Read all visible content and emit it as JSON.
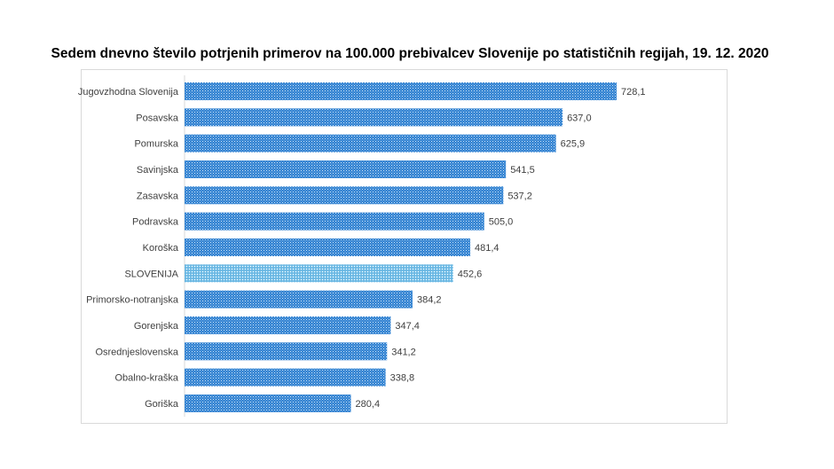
{
  "chart_data": {
    "type": "bar",
    "orientation": "horizontal",
    "title": "Sedem dnevno število potrjenih primerov na 100.000 prebivalcev Slovenije po statističnih regijah, 19. 12. 2020",
    "categories": [
      "Jugovzhodna Slovenija",
      "Posavska",
      "Pomurska",
      "Savinjska",
      "Zasavska",
      "Podravska",
      "Koroška",
      "SLOVENIJA",
      "Primorsko-notranjska",
      "Gorenjska",
      "Osrednjeslovenska",
      "Obalno-kraška",
      "Goriška"
    ],
    "values": [
      728.1,
      637.0,
      625.9,
      541.5,
      537.2,
      505.0,
      481.4,
      452.6,
      384.2,
      347.4,
      341.2,
      338.8,
      280.4
    ],
    "data_labels": [
      "728,1",
      "637,0",
      "625,9",
      "541,5",
      "537,2",
      "505,0",
      "481,4",
      "452,6",
      "384,2",
      "347,4",
      "341,2",
      "338,8",
      "280,4"
    ],
    "highlighted_category": "SLOVENIJA",
    "colors": {
      "bar": "#2e7fd0",
      "bar_highlight": "#7cc4ea",
      "pattern_dot": "#cfe6f8"
    },
    "grid": false,
    "legend": "none",
    "value_axis_visible": false
  }
}
